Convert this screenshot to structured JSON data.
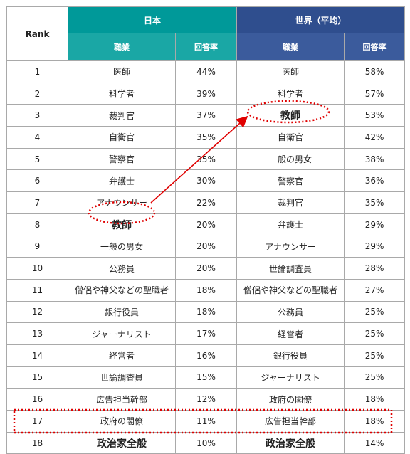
{
  "header": {
    "rank": "Rank",
    "japan": "日本",
    "world": "世界（平均）",
    "occupation": "職業",
    "rate": "回答率"
  },
  "rows": [
    {
      "rank": "1",
      "jp_job": "医師",
      "jp_rate": "44%",
      "w_job": "医師",
      "w_rate": "58%"
    },
    {
      "rank": "2",
      "jp_job": "科学者",
      "jp_rate": "39%",
      "w_job": "科学者",
      "w_rate": "57%"
    },
    {
      "rank": "3",
      "jp_job": "裁判官",
      "jp_rate": "37%",
      "w_job": "教師",
      "w_rate": "53%"
    },
    {
      "rank": "4",
      "jp_job": "自衛官",
      "jp_rate": "35%",
      "w_job": "自衛官",
      "w_rate": "42%"
    },
    {
      "rank": "5",
      "jp_job": "警察官",
      "jp_rate": "35%",
      "w_job": "一般の男女",
      "w_rate": "38%"
    },
    {
      "rank": "6",
      "jp_job": "弁護士",
      "jp_rate": "30%",
      "w_job": "警察官",
      "w_rate": "36%"
    },
    {
      "rank": "7",
      "jp_job": "アナウンサー",
      "jp_rate": "22%",
      "w_job": "裁判官",
      "w_rate": "35%"
    },
    {
      "rank": "8",
      "jp_job": "教師",
      "jp_rate": "20%",
      "w_job": "弁護士",
      "w_rate": "29%"
    },
    {
      "rank": "9",
      "jp_job": "一般の男女",
      "jp_rate": "20%",
      "w_job": "アナウンサー",
      "w_rate": "29%"
    },
    {
      "rank": "10",
      "jp_job": "公務員",
      "jp_rate": "20%",
      "w_job": "世論調査員",
      "w_rate": "28%"
    },
    {
      "rank": "11",
      "jp_job": "僧侶や神父などの聖職者",
      "jp_rate": "18%",
      "w_job": "僧侶や神父などの聖職者",
      "w_rate": "27%"
    },
    {
      "rank": "12",
      "jp_job": "銀行役員",
      "jp_rate": "18%",
      "w_job": "公務員",
      "w_rate": "25%"
    },
    {
      "rank": "13",
      "jp_job": "ジャーナリスト",
      "jp_rate": "17%",
      "w_job": "経営者",
      "w_rate": "25%"
    },
    {
      "rank": "14",
      "jp_job": "経営者",
      "jp_rate": "16%",
      "w_job": "銀行役員",
      "w_rate": "25%"
    },
    {
      "rank": "15",
      "jp_job": "世論調査員",
      "jp_rate": "15%",
      "w_job": "ジャーナリスト",
      "w_rate": "25%"
    },
    {
      "rank": "16",
      "jp_job": "広告担当幹部",
      "jp_rate": "12%",
      "w_job": "政府の閣僚",
      "w_rate": "18%"
    },
    {
      "rank": "17",
      "jp_job": "政府の閣僚",
      "jp_rate": "11%",
      "w_job": "広告担当幹部",
      "w_rate": "18%"
    },
    {
      "rank": "18",
      "jp_job": "政治家全般",
      "jp_rate": "10%",
      "w_job": "政治家全般",
      "w_rate": "14%"
    }
  ],
  "colors": {
    "japan_header": "#009999",
    "world_header": "#2f4e8e",
    "highlight": "#e00000"
  }
}
